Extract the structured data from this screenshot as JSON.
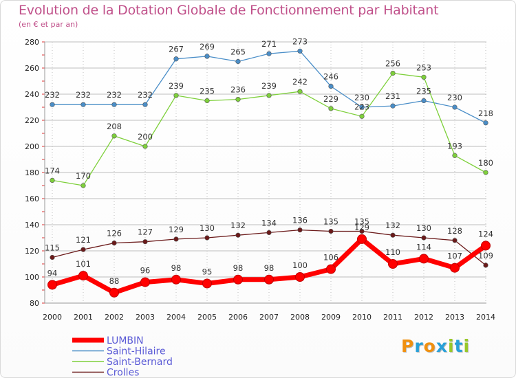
{
  "chart_data": {
    "type": "line",
    "title": "Evolution de la Dotation Globale de Fonctionnement par Habitant",
    "subtitle": "(en € et par an)",
    "x": [
      "2000",
      "2001",
      "2002",
      "2003",
      "2004",
      "2005",
      "2006",
      "2007",
      "2008",
      "2009",
      "2010",
      "2011",
      "2012",
      "2013",
      "2014"
    ],
    "ylim": [
      80,
      280
    ],
    "yticks": [
      "80",
      "100",
      "120",
      "140",
      "160",
      "180",
      "200",
      "220",
      "240",
      "260",
      "280"
    ],
    "grid": true,
    "legend_position": "bottom-left",
    "series": [
      {
        "name": "LUMBIN",
        "color": "#ff0000",
        "values": [
          94,
          101,
          88,
          96,
          98,
          95,
          98,
          98,
          100,
          106,
          129,
          110,
          114,
          107,
          124
        ]
      },
      {
        "name": "Saint-Hilaire",
        "color": "#4a8ec8",
        "values": [
          232,
          232,
          232,
          232,
          267,
          269,
          265,
          271,
          273,
          246,
          230,
          231,
          235,
          230,
          218
        ]
      },
      {
        "name": "Saint-Bernard",
        "color": "#7ed03b",
        "values": [
          174,
          170,
          208,
          200,
          239,
          235,
          236,
          239,
          242,
          229,
          223,
          256,
          253,
          193,
          180
        ]
      },
      {
        "name": "Crolles",
        "color": "#6b1a1a",
        "values": [
          115,
          121,
          126,
          127,
          129,
          130,
          132,
          134,
          136,
          135,
          135,
          132,
          130,
          128,
          109
        ]
      }
    ]
  },
  "brand": {
    "letters": [
      "P",
      "r",
      "o",
      "x",
      "i",
      "t",
      "i"
    ],
    "colors": [
      "#f09010",
      "#28a0d8",
      "#f09010",
      "#28a0d8",
      "#98c828",
      "#28a0d8",
      "#98c828"
    ]
  }
}
